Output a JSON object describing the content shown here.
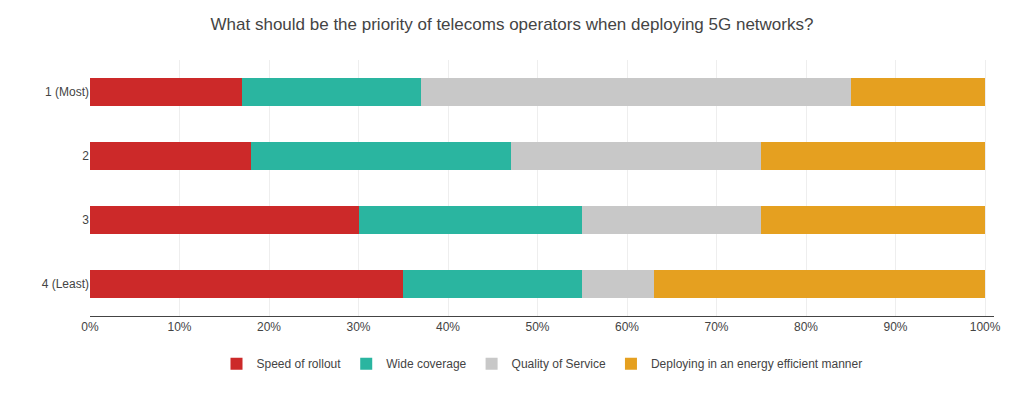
{
  "chart_data": {
    "type": "bar",
    "orientation": "horizontal",
    "stacked": true,
    "title": "What should be the priority of telecoms operators when deploying 5G networks?",
    "categories": [
      "1 (Most)",
      "2",
      "3",
      "4 (Least)"
    ],
    "series": [
      {
        "name": "Speed of rollout",
        "color": "#cc2929",
        "values": [
          17,
          18,
          30,
          35
        ]
      },
      {
        "name": "Wide coverage",
        "color": "#2ab5a0",
        "values": [
          20,
          29,
          25,
          20
        ]
      },
      {
        "name": "Quality of Service",
        "color": "#c8c8c8",
        "values": [
          48,
          28,
          20,
          8
        ]
      },
      {
        "name": "Deploying in an energy efficient manner",
        "color": "#e5a020",
        "values": [
          15,
          25,
          25,
          37
        ]
      }
    ],
    "xlim": [
      0,
      101
    ],
    "xticks": [
      {
        "value": 0,
        "label": "0%"
      },
      {
        "value": 10,
        "label": "10%"
      },
      {
        "value": 20,
        "label": "20%"
      },
      {
        "value": 30,
        "label": "30%"
      },
      {
        "value": 40,
        "label": "40%"
      },
      {
        "value": 50,
        "label": "50%"
      },
      {
        "value": 60,
        "label": "60%"
      },
      {
        "value": 70,
        "label": "70%"
      },
      {
        "value": 80,
        "label": "80%"
      },
      {
        "value": 90,
        "label": "90%"
      },
      {
        "value": 100,
        "label": "100%"
      }
    ],
    "grid": true,
    "legend": "bottom"
  }
}
